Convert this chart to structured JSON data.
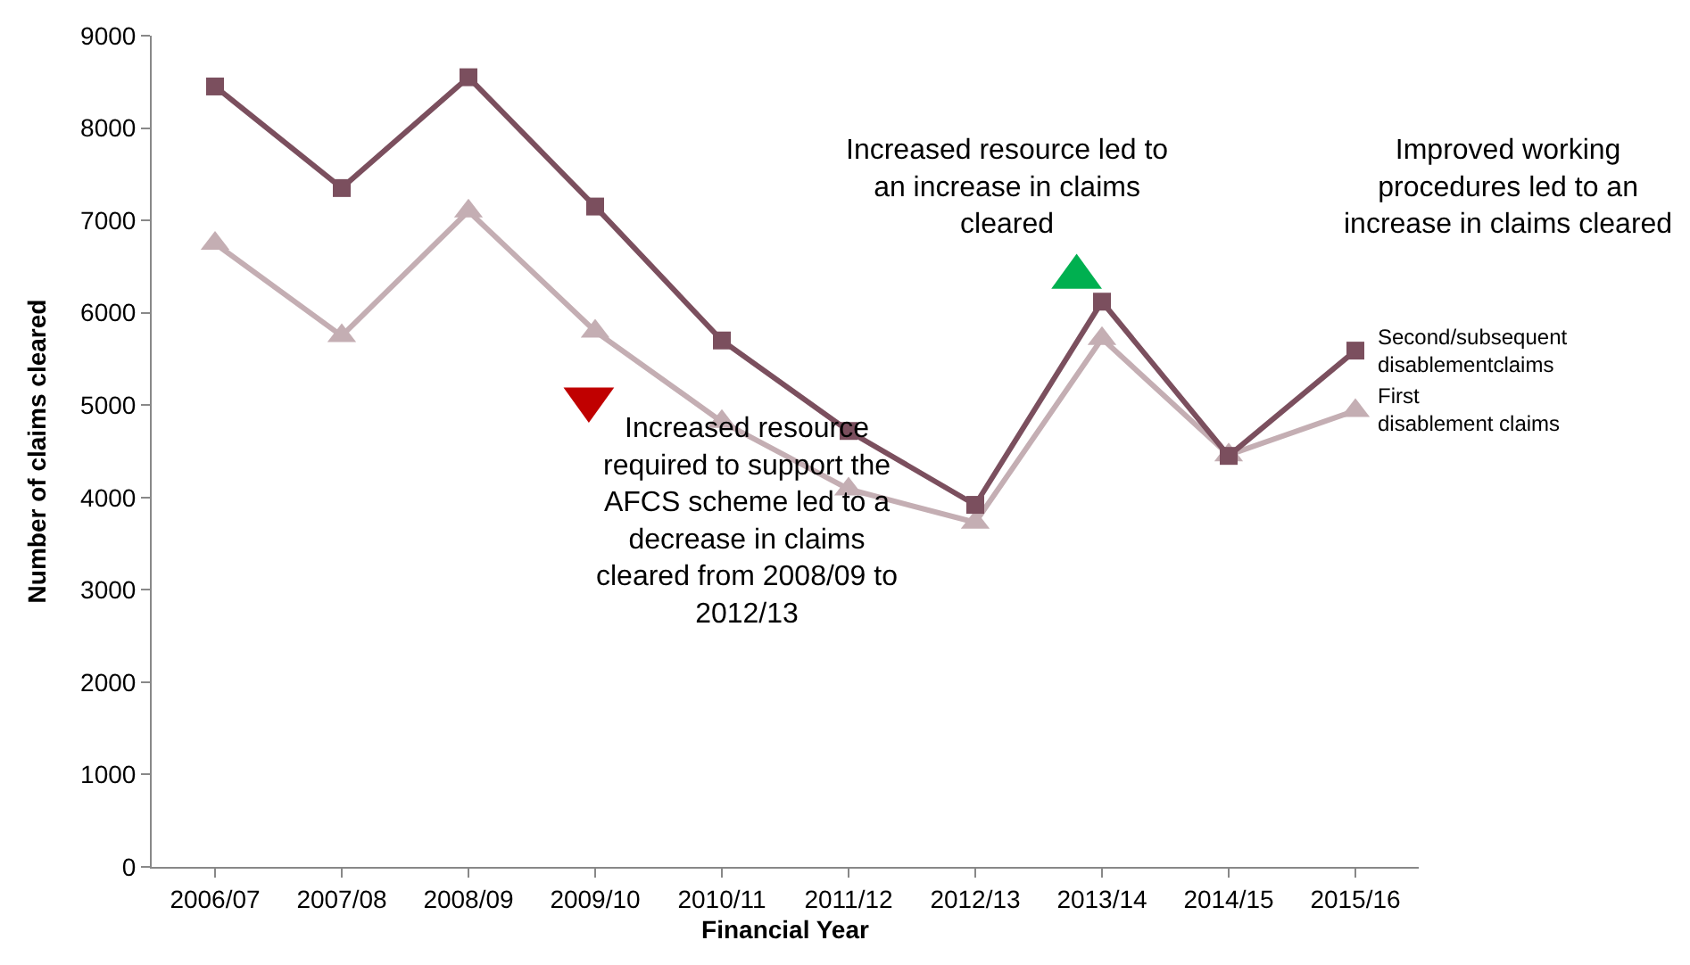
{
  "chart_data": {
    "type": "line",
    "xlabel": "Financial Year",
    "ylabel": "Number of claims cleared",
    "categories": [
      "2006/07",
      "2007/08",
      "2008/09",
      "2009/10",
      "2010/11",
      "2011/12",
      "2012/13",
      "2013/14",
      "2014/15",
      "2015/16"
    ],
    "series": [
      {
        "name": "Second/subsequent disablementclaims",
        "color": "#7b4f5e",
        "marker": "square",
        "values": [
          8450,
          7350,
          8550,
          7150,
          5700,
          4720,
          3920,
          6120,
          4450,
          5590
        ]
      },
      {
        "name": "First disablement claims",
        "color": "#c4aeb3",
        "marker": "triangle",
        "values": [
          6750,
          5750,
          7100,
          5800,
          4820,
          4090,
          3730,
          5720,
          4460,
          4940
        ]
      }
    ],
    "ylim": [
      0,
      9000
    ],
    "yticks": [
      0,
      1000,
      2000,
      3000,
      4000,
      5000,
      6000,
      7000,
      8000,
      9000
    ],
    "grid": false,
    "legend": false,
    "annotations": [
      "Increased resource required to support the AFCS scheme led to a decrease in claims cleared from 2008/09 to 2012/13",
      "Increased resource led to an increase in claims cleared",
      "Improved working procedures led to an increase in claims cleared"
    ]
  }
}
